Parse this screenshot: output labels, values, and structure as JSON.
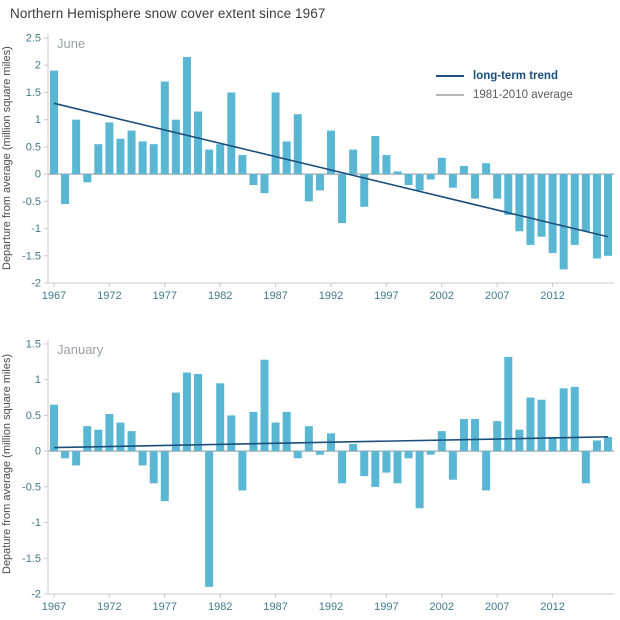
{
  "title": "Northern Hemisphere snow cover extent since 1967",
  "legend": {
    "trend_label": "long-term trend",
    "average_label": "1981-2010 average"
  },
  "colors": {
    "bar": "#5ab7d4",
    "trend": "#1d4f7c",
    "average": "#b5b5b5",
    "axis": "#c9c9c9",
    "tick_label": "#42798b",
    "title_text": "#3c3c3c",
    "panel_label": "#9aa0a6"
  },
  "chart_data": [
    {
      "type": "bar",
      "title": "June",
      "ylabel": "Departure from average (million square miles)",
      "ylim": [
        -2,
        2.5
      ],
      "yticks": [
        2.5,
        2,
        1.5,
        1,
        0.5,
        0,
        -0.5,
        -1,
        -1.5,
        -2
      ],
      "xticks": [
        1967,
        1972,
        1977,
        1982,
        1987,
        1992,
        1997,
        2002,
        2007,
        2012
      ],
      "years": [
        1967,
        1968,
        1969,
        1970,
        1971,
        1972,
        1973,
        1974,
        1975,
        1976,
        1977,
        1978,
        1979,
        1980,
        1981,
        1982,
        1983,
        1984,
        1985,
        1986,
        1987,
        1988,
        1989,
        1990,
        1991,
        1992,
        1993,
        1994,
        1995,
        1996,
        1997,
        1998,
        1999,
        2000,
        2001,
        2002,
        2003,
        2004,
        2005,
        2006,
        2007,
        2008,
        2009,
        2010,
        2011,
        2012,
        2013,
        2014,
        2015,
        2016,
        2017
      ],
      "values": [
        1.9,
        -0.55,
        1.0,
        -0.15,
        0.55,
        0.95,
        0.65,
        0.8,
        0.6,
        0.55,
        1.7,
        1.0,
        2.15,
        1.15,
        0.45,
        0.55,
        1.5,
        0.35,
        -0.2,
        -0.35,
        1.5,
        0.6,
        1.1,
        -0.5,
        -0.3,
        0.8,
        -0.9,
        0.45,
        -0.6,
        0.7,
        0.35,
        0.05,
        -0.2,
        -0.3,
        -0.1,
        0.3,
        -0.25,
        0.15,
        -0.45,
        0.2,
        -0.45,
        -0.75,
        -1.05,
        -1.3,
        -1.15,
        -1.45,
        -1.75,
        -1.3,
        -1.05,
        -1.55,
        -1.5
      ],
      "trend_line": {
        "label": "long-term trend",
        "x": [
          1967,
          2017
        ],
        "y": [
          1.3,
          -1.15
        ]
      },
      "average_line": {
        "label": "1981-2010 average",
        "y": 0
      },
      "grid": false,
      "legend_position": "top-right"
    },
    {
      "type": "bar",
      "title": "January",
      "ylabel": "Depature from average (million square miles)",
      "ylim": [
        -2,
        1.5
      ],
      "yticks": [
        1.5,
        1,
        0.5,
        0,
        -0.5,
        -1,
        -1.5,
        -2
      ],
      "xticks": [
        1967,
        1972,
        1977,
        1982,
        1987,
        1992,
        1997,
        2002,
        2007,
        2012
      ],
      "years": [
        1967,
        1968,
        1969,
        1970,
        1971,
        1972,
        1973,
        1974,
        1975,
        1976,
        1977,
        1978,
        1979,
        1980,
        1981,
        1982,
        1983,
        1984,
        1985,
        1986,
        1987,
        1988,
        1989,
        1990,
        1991,
        1992,
        1993,
        1994,
        1995,
        1996,
        1997,
        1998,
        1999,
        2000,
        2001,
        2002,
        2003,
        2004,
        2005,
        2006,
        2007,
        2008,
        2009,
        2010,
        2011,
        2012,
        2013,
        2014,
        2015,
        2016,
        2017
      ],
      "values": [
        0.65,
        -0.1,
        -0.2,
        0.35,
        0.3,
        0.52,
        0.4,
        0.28,
        -0.2,
        -0.45,
        -0.7,
        0.82,
        1.1,
        1.08,
        -1.9,
        0.95,
        0.5,
        -0.55,
        0.55,
        1.28,
        0.4,
        0.55,
        -0.1,
        0.35,
        -0.05,
        0.25,
        -0.45,
        0.1,
        -0.35,
        -0.5,
        -0.3,
        -0.45,
        -0.1,
        -0.8,
        -0.05,
        0.28,
        -0.4,
        0.45,
        0.45,
        -0.55,
        0.42,
        1.32,
        0.3,
        0.75,
        0.72,
        0.2,
        0.88,
        0.9,
        -0.45,
        0.15,
        0.2
      ],
      "trend_line": {
        "label": "long-term trend",
        "x": [
          1967,
          2017
        ],
        "y": [
          0.05,
          0.2
        ]
      },
      "average_line": {
        "label": "1981-2010 average",
        "y": 0
      },
      "grid": false,
      "legend_position": "none"
    }
  ]
}
